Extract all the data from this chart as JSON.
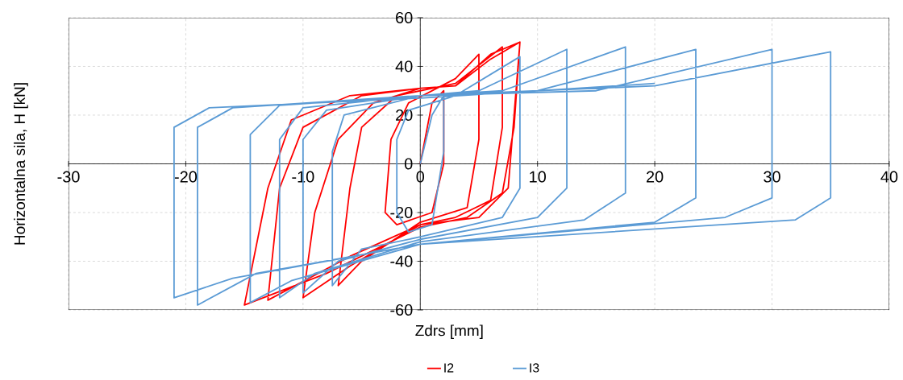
{
  "chart_data": {
    "type": "line",
    "xlabel": "Zdrs [mm]",
    "ylabel": "Horizontalna sila, H [kN]",
    "xlim": [
      -30,
      40
    ],
    "ylim": [
      -60,
      60
    ],
    "xticks": [
      -30,
      -20,
      -10,
      0,
      10,
      20,
      30,
      40
    ],
    "yticks": [
      -60,
      -40,
      -20,
      0,
      20,
      40,
      60
    ],
    "grid": true,
    "legend": "bottom",
    "series": [
      {
        "name": "I2",
        "color": "#ff0000",
        "x": [
          0,
          1,
          2,
          2,
          1,
          -2,
          -3,
          -2.5,
          -1,
          3,
          5,
          5,
          4,
          0,
          -5,
          -7,
          -6,
          -5,
          -2,
          3,
          7,
          7,
          6,
          3,
          0,
          -6,
          -10,
          -9,
          -7,
          -4,
          0,
          3,
          6,
          8.5,
          8,
          7.5,
          5,
          0,
          -6,
          -13,
          -12,
          -10,
          -5,
          0,
          3,
          6,
          8.5,
          8,
          7,
          4,
          0,
          -8,
          -15,
          -13,
          -11,
          -6,
          0
        ],
        "values": [
          0,
          25,
          30,
          0,
          -20,
          -25,
          -20,
          10,
          25,
          35,
          45,
          10,
          -18,
          -24,
          -40,
          -50,
          -10,
          15,
          28,
          33,
          48,
          15,
          -15,
          -22,
          -25,
          -42,
          -55,
          -20,
          10,
          25,
          31,
          32,
          43,
          50,
          20,
          -10,
          -22,
          -25,
          -38,
          -56,
          -10,
          15,
          28,
          31,
          32,
          45,
          50,
          15,
          -12,
          -22,
          -26,
          -45,
          -58,
          -10,
          18,
          28,
          31
        ]
      },
      {
        "name": "I3",
        "color": "#5b9bd5",
        "x": [
          0,
          1,
          2,
          2,
          1,
          -1,
          -2,
          -2,
          -1,
          3,
          8.5,
          8.5,
          7,
          0,
          -5,
          -7.5,
          -7.5,
          -6.5,
          0,
          5,
          12.5,
          12.5,
          10,
          0,
          -7,
          -10,
          -10,
          -8,
          0,
          7,
          17.5,
          17.5,
          14,
          0,
          -9,
          -12,
          -12,
          -10,
          0,
          10,
          23.5,
          23.5,
          20,
          0,
          -11,
          -14.5,
          -14.5,
          -12,
          0,
          15,
          30,
          30,
          26,
          0,
          -14,
          -19,
          -19,
          -16,
          0,
          20,
          35,
          35,
          32,
          0,
          -16,
          -21,
          -21,
          -18,
          0,
          20
        ],
        "values": [
          0,
          20,
          28,
          5,
          -25,
          -28,
          -20,
          10,
          22,
          28,
          44,
          -10,
          -22,
          -30,
          -35,
          -50,
          5,
          20,
          28,
          30,
          47,
          -10,
          -22,
          -31,
          -40,
          -53,
          10,
          22,
          28,
          30,
          48,
          -12,
          -23,
          -32,
          -45,
          -55,
          10,
          23,
          28,
          30,
          47,
          -14,
          -24,
          -33,
          -48,
          -57,
          12,
          24,
          28,
          30,
          47,
          -14,
          -22,
          -33,
          -45,
          -58,
          15,
          23,
          28,
          32,
          46,
          -14,
          -23,
          -33,
          -47,
          -55,
          15,
          23,
          27,
          33
        ]
      }
    ]
  }
}
